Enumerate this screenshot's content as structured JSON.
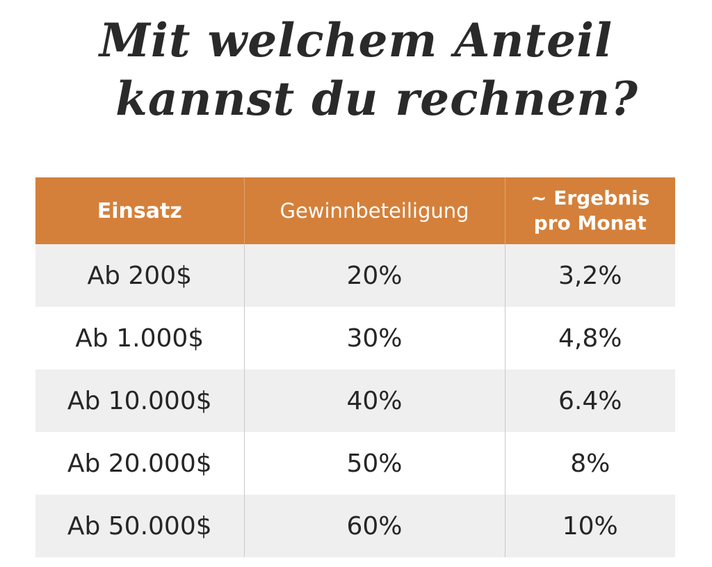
{
  "headline": {
    "line1": "Mit welchem Anteil",
    "line2": "kannst du rechnen?"
  },
  "table": {
    "headers": {
      "einsatz": "Einsatz",
      "gewinnbeteiligung": "Gewinnbeteiligung",
      "ergebnis_line1": "~ Ergebnis",
      "ergebnis_line2": "pro Monat"
    },
    "rows": [
      {
        "einsatz": "Ab 200$",
        "gewinnbeteiligung": "20%",
        "ergebnis": "3,2%"
      },
      {
        "einsatz": "Ab 1.000$",
        "gewinnbeteiligung": "30%",
        "ergebnis": "4,8%"
      },
      {
        "einsatz": "Ab 10.000$",
        "gewinnbeteiligung": "40%",
        "ergebnis": "6.4%"
      },
      {
        "einsatz": "Ab 20.000$",
        "gewinnbeteiligung": "50%",
        "ergebnis": "8%"
      },
      {
        "einsatz": "Ab 50.000$",
        "gewinnbeteiligung": "60%",
        "ergebnis": "10%"
      }
    ]
  },
  "colors": {
    "header_background": "#d4803a",
    "header_text": "#ffffff",
    "row_stripe": "#efefef",
    "text": "#262626"
  }
}
